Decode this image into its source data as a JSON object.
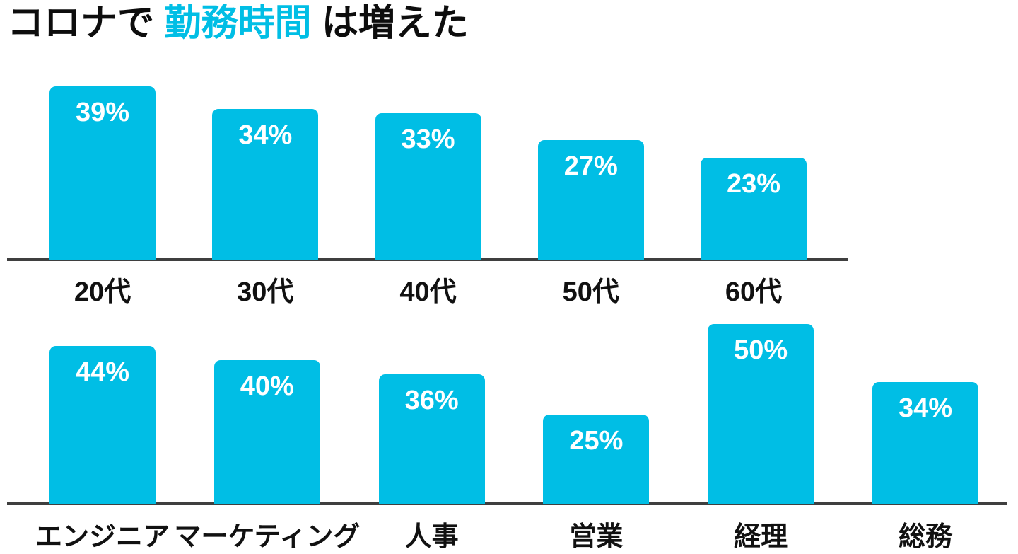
{
  "title": {
    "prefix": "コロナで ",
    "highlight": "勤務時間",
    "suffix": " は増えた"
  },
  "colors": {
    "bar": "#00BEE5",
    "highlight": "#00BEE5",
    "axis_line": "#3F3F3F",
    "category_label": "#111111",
    "value_label": "#FFFFFF",
    "background": "#FFFFFF",
    "title_text": "#0D0D0D"
  },
  "chart_data": [
    {
      "type": "bar",
      "name": "by-age",
      "categories": [
        "20代",
        "30代",
        "40代",
        "50代",
        "60代"
      ],
      "values": [
        39,
        34,
        33,
        27,
        23
      ],
      "value_labels": [
        "39%",
        "34%",
        "33%",
        "27%",
        "23%"
      ],
      "unit": "%",
      "title": "",
      "xlabel": "",
      "ylabel": "",
      "ylim": [
        0,
        45
      ],
      "grid": false,
      "legend": false,
      "data_labels": "inside-top"
    },
    {
      "type": "bar",
      "name": "by-department",
      "categories": [
        "エンジニア",
        "マーケティング",
        "人事",
        "営業",
        "経理",
        "総務"
      ],
      "values": [
        44,
        40,
        36,
        25,
        50,
        34
      ],
      "value_labels": [
        "44%",
        "40%",
        "36%",
        "25%",
        "50%",
        "34%"
      ],
      "unit": "%",
      "title": "",
      "xlabel": "",
      "ylabel": "",
      "ylim": [
        0,
        55
      ],
      "grid": false,
      "legend": false,
      "data_labels": "inside-top"
    }
  ]
}
